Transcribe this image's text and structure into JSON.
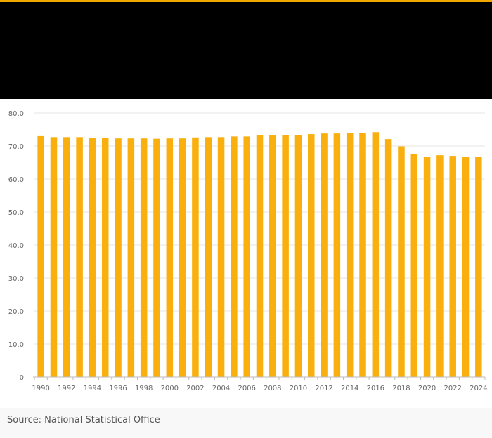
{
  "header": {
    "accent_color": "#f0a800",
    "background_color": "#000000"
  },
  "chart_data": {
    "type": "bar",
    "bar_color": "#f9b00f",
    "categories": [
      "1990",
      "1991",
      "1992",
      "1993",
      "1994",
      "1995",
      "1996",
      "1997",
      "1998",
      "1999",
      "2000",
      "2001",
      "2002",
      "2003",
      "2004",
      "2005",
      "2006",
      "2007",
      "2008",
      "2009",
      "2010",
      "2011",
      "2012",
      "2013",
      "2014",
      "2015",
      "2016",
      "2017",
      "2018",
      "2019",
      "2020",
      "2021",
      "2022",
      "2023",
      "2024"
    ],
    "values": [
      73.0,
      72.7,
      72.7,
      72.7,
      72.5,
      72.5,
      72.3,
      72.3,
      72.3,
      72.2,
      72.3,
      72.3,
      72.6,
      72.7,
      72.7,
      72.9,
      72.9,
      73.2,
      73.2,
      73.4,
      73.4,
      73.6,
      73.8,
      73.8,
      74.0,
      74.0,
      74.2,
      72.1,
      69.9,
      67.6,
      66.8,
      67.2,
      67.0,
      66.8,
      66.6
    ],
    "x_tick_labels": [
      "1990",
      "1992",
      "1994",
      "1996",
      "1998",
      "2000",
      "2002",
      "2004",
      "2006",
      "2008",
      "2010",
      "2012",
      "2014",
      "2016",
      "2018",
      "2020",
      "2022",
      "2024"
    ],
    "y_ticks": [
      0,
      10,
      20,
      30,
      40,
      50,
      60,
      70,
      80
    ],
    "y_tick_labels": [
      "0",
      "10.0",
      "20.0",
      "30.0",
      "40.0",
      "50.0",
      "60.0",
      "70.0",
      "80.0"
    ],
    "ylim": [
      0,
      80
    ],
    "grid": true,
    "legend": "none"
  },
  "source": "Source: National Statistical Office"
}
